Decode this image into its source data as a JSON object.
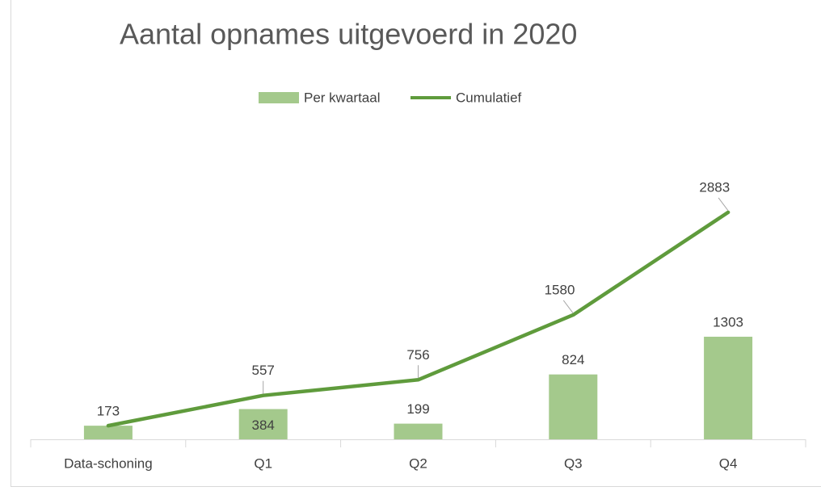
{
  "chart_data": {
    "type": "bar_line",
    "title": "Aantal opnames uitgevoerd in 2020",
    "categories": [
      "Data-schoning",
      "Q1",
      "Q2",
      "Q3",
      "Q4"
    ],
    "series": [
      {
        "name": "Per kwartaal",
        "type": "bar",
        "color": "#a4c98c",
        "values": [
          173,
          384,
          199,
          824,
          1303
        ]
      },
      {
        "name": "Cumulatief",
        "type": "line",
        "color": "#5f9b3c",
        "values": [
          173,
          557,
          756,
          1580,
          2883
        ]
      }
    ],
    "ylim": [
      0,
      4000
    ],
    "grid": false,
    "legend": "top"
  }
}
